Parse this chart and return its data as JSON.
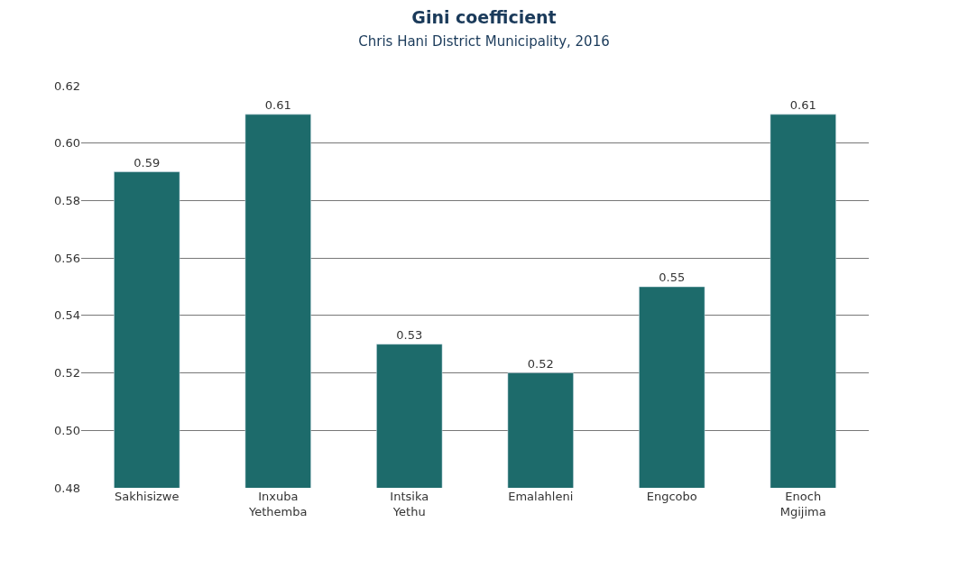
{
  "chart_data": {
    "type": "bar",
    "title": "Gini coefficient",
    "subtitle": "Chris Hani District Municipality, 2016",
    "categories": [
      "Sakhisizwe",
      "Inxuba Yethemba",
      "Intsika Yethu",
      "Emalahleni",
      "Engcobo",
      "Enoch Mgijima"
    ],
    "values": [
      0.59,
      0.61,
      0.53,
      0.52,
      0.55,
      0.61
    ],
    "color": "#1d6b6b",
    "data_labels": true,
    "grid": "y",
    "ylim": [
      0.48,
      0.62
    ],
    "yticks": [
      {
        "value": 0.48,
        "label": "0.48"
      },
      {
        "value": 0.5,
        "label": "0.50"
      },
      {
        "value": 0.52,
        "label": "0.52"
      },
      {
        "value": 0.54,
        "label": "0.54"
      },
      {
        "value": 0.56,
        "label": "0.56"
      },
      {
        "value": 0.58,
        "label": "0.58"
      },
      {
        "value": 0.6,
        "label": "0.60"
      },
      {
        "value": 0.62,
        "label": "0.62"
      }
    ]
  }
}
